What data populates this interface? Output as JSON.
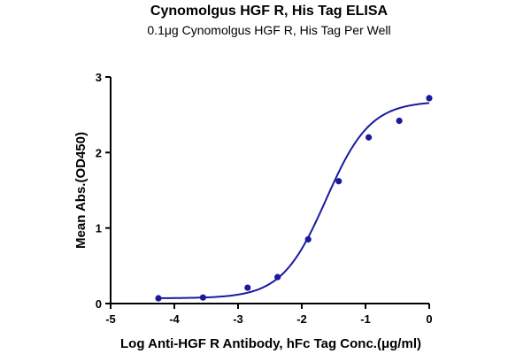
{
  "chart_data": {
    "type": "scatter",
    "title": "Cynomolgus HGF R, His Tag ELISA",
    "subtitle": "0.1μg Cynomolgus HGF R, His Tag Per Well",
    "xlabel": "Log Anti-HGF R Antibody, hFc Tag Conc.(μg/ml)",
    "ylabel": "Mean Abs.(OD450)",
    "xlim": [
      -5,
      0
    ],
    "ylim": [
      0,
      3
    ],
    "x_ticks": [
      -5,
      -4,
      -3,
      -2,
      -1,
      0
    ],
    "y_ticks": [
      0,
      1,
      2,
      3
    ],
    "x_tick_labels": [
      "-5",
      "-4",
      "-3",
      "-2",
      "-1",
      "0"
    ],
    "y_tick_labels": [
      "0",
      "1",
      "2",
      "3"
    ],
    "grid": false,
    "legend": "none",
    "color": "#1a1a9e",
    "series": [
      {
        "points": [
          {
            "x": -4.25,
            "y": 0.07
          },
          {
            "x": -3.55,
            "y": 0.08
          },
          {
            "x": -2.85,
            "y": 0.21
          },
          {
            "x": -2.38,
            "y": 0.35
          },
          {
            "x": -1.9,
            "y": 0.85
          },
          {
            "x": -1.42,
            "y": 1.62
          },
          {
            "x": -0.95,
            "y": 2.2
          },
          {
            "x": -0.47,
            "y": 2.42
          },
          {
            "x": 0.0,
            "y": 2.72
          }
        ]
      }
    ],
    "fit_curve": {
      "model": "4PL",
      "bottom": 0.07,
      "top": 2.68,
      "log_ec50": -1.62,
      "hill_slope": 1.25,
      "x_range": [
        -4.25,
        0.0
      ]
    }
  }
}
